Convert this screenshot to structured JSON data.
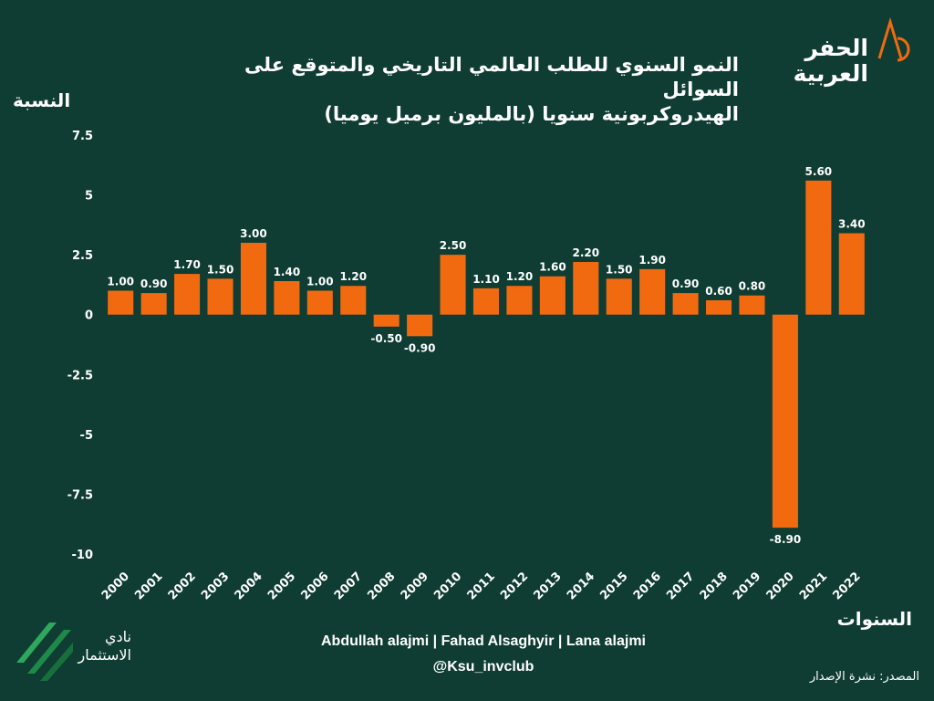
{
  "chart_data": {
    "type": "bar",
    "title": "النمو السنوي للطلب العالمي التاريخي والمتوقع على السوائل الهيدروكربونية سنويا (بالمليون برميل يوميا)",
    "title_lines": [
      "النمو السنوي للطلب العالمي التاريخي والمتوقع على السوائل",
      "الهيدروكربونية سنويا (بالمليون برميل يوميا)"
    ],
    "ylabel": "النسبة",
    "xlabel": "السنوات",
    "ylim": [
      -10,
      7.5
    ],
    "yticks": [
      7.5,
      5,
      2.5,
      0,
      -2.5,
      -5,
      -7.5,
      -10
    ],
    "ytick_labels": [
      "7.5",
      "5",
      "2.5",
      "0",
      "-2.5",
      "-5",
      "-7.5",
      "-10"
    ],
    "categories": [
      "2000",
      "2001",
      "2002",
      "2003",
      "2004",
      "2005",
      "2006",
      "2007",
      "2008",
      "2009",
      "2010",
      "2011",
      "2012",
      "2013",
      "2014",
      "2015",
      "2016",
      "2017",
      "2018",
      "2019",
      "2020",
      "2021",
      "2022"
    ],
    "values": [
      1.0,
      0.9,
      1.7,
      1.5,
      3.0,
      1.4,
      1.0,
      1.2,
      -0.5,
      -0.9,
      2.5,
      1.1,
      1.2,
      1.6,
      2.2,
      1.5,
      1.9,
      0.9,
      0.6,
      0.8,
      -8.9,
      5.6,
      3.4
    ],
    "value_labels": [
      "1.00",
      "0.90",
      "1.70",
      "1.50",
      "3.00",
      "1.40",
      "1.00",
      "1.20",
      "-0.50",
      "-0.90",
      "2.50",
      "1.10",
      "1.20",
      "1.60",
      "2.20",
      "1.50",
      "1.90",
      "0.90",
      "0.60",
      "0.80",
      "-8.90",
      "5.60",
      "3.40"
    ],
    "grid": false,
    "bar_color": "#f26a10",
    "background": "#0f3d33"
  },
  "brand": {
    "name_lines": [
      "الحفر",
      "العربية"
    ],
    "accent_color": "#f26a10",
    "icon": "brand-mark-icon"
  },
  "club": {
    "lines": [
      "نادي",
      "الاستثمار"
    ],
    "icon": "club-stripes-icon",
    "color": "#1e8a4a"
  },
  "credits": {
    "authors": "Abdullah alajmi | Fahad Alsaghyir | Lana alajmi",
    "handle": "@Ksu_invclub",
    "source": "المصدر: نشرة الإصدار"
  }
}
